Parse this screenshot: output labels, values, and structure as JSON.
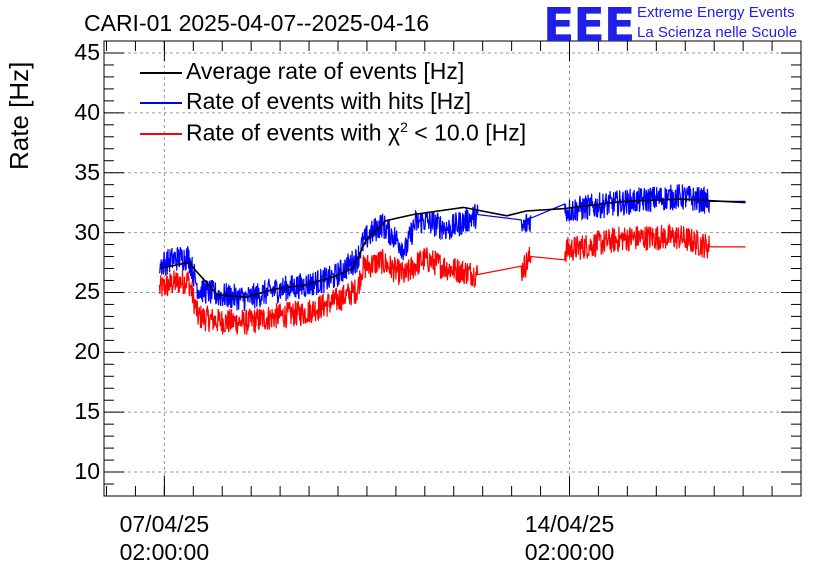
{
  "header": {
    "title": "CARI-01 2025-04-07--2025-04-16",
    "logo_text": "EEE",
    "logo_line1": "Extreme Energy Events",
    "logo_line2": "La Scienza nelle Scuole"
  },
  "colors": {
    "average": "#000000",
    "hits": "#0000ff",
    "chi2": "#ff0000",
    "grid": "#9a9a9a",
    "logo": "#1f1fe6"
  },
  "chart_data": {
    "type": "line",
    "ylabel": "Rate [Hz]",
    "ylim": [
      8,
      46
    ],
    "yticks": [
      "10",
      "15",
      "20",
      "25",
      "30",
      "35",
      "40",
      "45"
    ],
    "xlim": [
      "2025-04-06 00:58",
      "2025-04-18 02:00"
    ],
    "xticks": [
      {
        "date": "07/04/25",
        "time": "02:00:00"
      },
      {
        "date": "14/04/25",
        "time": "02:00:00"
      }
    ],
    "grid": true,
    "legend_position": "top-left",
    "legend": [
      {
        "label": "Average rate of events [Hz]",
        "series": "average"
      },
      {
        "label": "Rate of events with hits [Hz]",
        "series": "hits"
      },
      {
        "label_prefix": "Rate of events with χ",
        "label_sup": "2",
        "label_suffix": " < 10.0 [Hz]",
        "series": "chi2"
      }
    ],
    "series": [
      {
        "name": "Average rate of events [Hz]",
        "key": "average",
        "noise": 0,
        "points": [
          [
            "2025-04-07 00:00",
            27.0
          ],
          [
            "2025-04-07 12:00",
            27.5
          ],
          [
            "2025-04-08 00:00",
            24.8
          ],
          [
            "2025-04-08 12:00",
            24.6
          ],
          [
            "2025-04-09 00:00",
            25.3
          ],
          [
            "2025-04-09 12:00",
            25.6
          ],
          [
            "2025-04-10 00:00",
            26.3
          ],
          [
            "2025-04-10 08:00",
            27.0
          ],
          [
            "2025-04-10 14:00",
            29.5
          ],
          [
            "2025-04-10 22:00",
            31.0
          ],
          [
            "2025-04-11 09:00",
            31.5
          ],
          [
            "2025-04-12 06:00",
            32.1
          ],
          [
            "2025-04-13 00:00",
            31.4
          ],
          [
            "2025-04-13 08:00",
            31.8
          ],
          [
            "2025-04-14 00:00",
            32.0
          ],
          [
            "2025-04-15 00:00",
            32.6
          ],
          [
            "2025-04-16 00:00",
            32.8
          ],
          [
            "2025-04-17 03:00",
            32.5
          ]
        ]
      },
      {
        "name": "Rate of events with hits [Hz]",
        "key": "hits",
        "noise": 1.1,
        "points": [
          [
            "2025-04-07 00:00",
            27.3
          ],
          [
            "2025-04-07 06:00",
            27.8
          ],
          [
            "2025-04-07 12:00",
            28.0
          ],
          [
            "2025-04-07 16:00",
            25.3
          ],
          [
            "2025-04-08 00:00",
            24.8
          ],
          [
            "2025-04-08 12:00",
            24.5
          ],
          [
            "2025-04-09 00:00",
            25.2
          ],
          [
            "2025-04-09 12:00",
            25.6
          ],
          [
            "2025-04-10 00:00",
            26.2
          ],
          [
            "2025-04-10 06:00",
            27.2
          ],
          [
            "2025-04-10 10:00",
            27.8
          ],
          [
            "2025-04-10 12:00",
            29.0
          ],
          [
            "2025-04-10 14:00",
            29.6
          ],
          [
            "2025-04-10 20:00",
            30.7
          ],
          [
            "2025-04-11 02:00",
            29.5
          ],
          [
            "2025-04-11 06:00",
            28.5
          ],
          [
            "2025-04-11 10:00",
            30.8
          ],
          [
            "2025-04-11 14:00",
            31.0
          ],
          [
            "2025-04-12 00:00",
            30.3
          ],
          [
            "2025-04-12 12:00",
            31.5
          ],
          [
            "2025-04-13 06:00",
            30.2
          ],
          [
            "2025-04-13 10:00",
            31.2
          ],
          [
            "2025-04-14 00:00",
            31.8
          ],
          [
            "2025-04-14 12:00",
            32.2
          ],
          [
            "2025-04-15 00:00",
            32.5
          ],
          [
            "2025-04-15 12:00",
            32.8
          ],
          [
            "2025-04-16 00:00",
            33.0
          ],
          [
            "2025-04-16 12:00",
            32.6
          ],
          [
            "2025-04-17 03:00",
            32.6
          ]
        ]
      },
      {
        "name": "Rate of events with χ2 < 10.0 [Hz]",
        "key": "chi2",
        "noise": 1.1,
        "points": [
          [
            "2025-04-07 00:00",
            25.3
          ],
          [
            "2025-04-07 06:00",
            25.8
          ],
          [
            "2025-04-07 12:00",
            26.0
          ],
          [
            "2025-04-07 16:00",
            23.0
          ],
          [
            "2025-04-08 00:00",
            22.6
          ],
          [
            "2025-04-08 12:00",
            22.5
          ],
          [
            "2025-04-09 00:00",
            23.0
          ],
          [
            "2025-04-09 12:00",
            23.3
          ],
          [
            "2025-04-10 00:00",
            24.2
          ],
          [
            "2025-04-10 06:00",
            24.8
          ],
          [
            "2025-04-10 10:00",
            25.2
          ],
          [
            "2025-04-10 12:00",
            27.0
          ],
          [
            "2025-04-10 14:00",
            27.2
          ],
          [
            "2025-04-10 20:00",
            27.6
          ],
          [
            "2025-04-11 02:00",
            26.8
          ],
          [
            "2025-04-11 06:00",
            26.4
          ],
          [
            "2025-04-11 10:00",
            27.3
          ],
          [
            "2025-04-11 14:00",
            27.8
          ],
          [
            "2025-04-12 00:00",
            27.0
          ],
          [
            "2025-04-12 12:00",
            26.5
          ],
          [
            "2025-04-13 06:00",
            26.8
          ],
          [
            "2025-04-13 10:00",
            28.0
          ],
          [
            "2025-04-14 00:00",
            28.5
          ],
          [
            "2025-04-14 12:00",
            29.0
          ],
          [
            "2025-04-15 00:00",
            29.5
          ],
          [
            "2025-04-15 12:00",
            29.6
          ],
          [
            "2025-04-16 00:00",
            29.6
          ],
          [
            "2025-04-16 12:00",
            28.8
          ],
          [
            "2025-04-17 03:00",
            28.8
          ]
        ]
      }
    ]
  }
}
